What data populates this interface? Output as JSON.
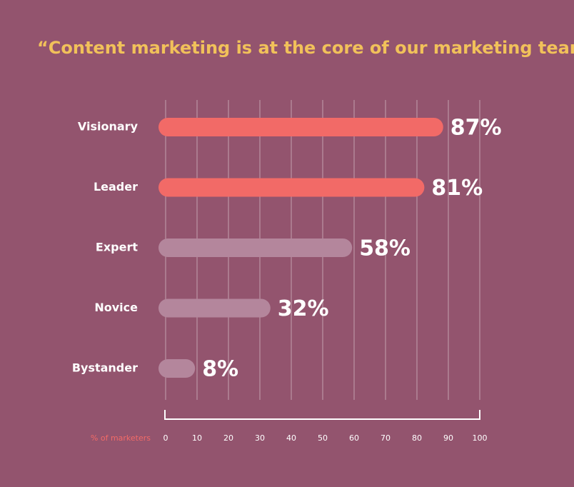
{
  "chart_data": {
    "type": "hbar",
    "title": "“Content marketing is at the core of our marketing team.”",
    "categories": [
      "Visionary",
      "Leader",
      "Expert",
      "Novice",
      "Bystander"
    ],
    "values": [
      87,
      81,
      58,
      32,
      8
    ],
    "value_labels": [
      "87%",
      "81%",
      "58%",
      "32%",
      "8%"
    ],
    "colors": [
      "#f26a67",
      "#f26a67",
      "#b4869c",
      "#b4869c",
      "#b4869c"
    ],
    "xlabel": "% of marketers",
    "xlim": [
      0,
      100
    ],
    "xticks": [
      0,
      10,
      20,
      30,
      40,
      50,
      60,
      70,
      80,
      90,
      100
    ],
    "grid": true
  }
}
